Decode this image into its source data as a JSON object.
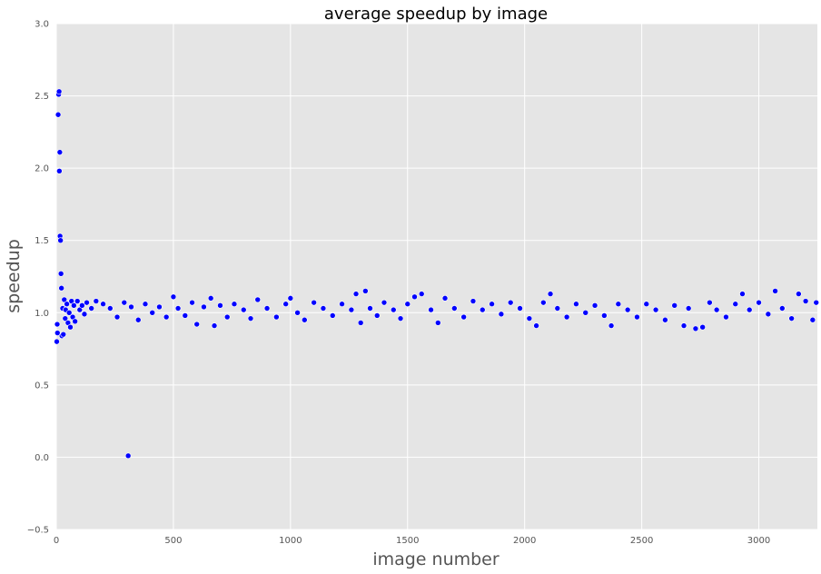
{
  "chart_data": {
    "type": "scatter",
    "title": "average speedup by image",
    "xlabel": "image number",
    "ylabel": "speedup",
    "xlim": [
      0,
      3250
    ],
    "ylim": [
      -0.5,
      3.0
    ],
    "xticks": [
      "0",
      "500",
      "1000",
      "1500",
      "2000",
      "2500",
      "3000"
    ],
    "xtick_values": [
      0,
      500,
      1000,
      1500,
      2000,
      2500,
      3000
    ],
    "yticks": [
      "−0.5",
      "0.0",
      "0.5",
      "1.0",
      "1.5",
      "2.0",
      "2.5",
      "3.0"
    ],
    "ytick_values": [
      -0.5,
      0.0,
      0.5,
      1.0,
      1.5,
      2.0,
      2.5,
      3.0
    ],
    "grid": true,
    "colors": {
      "background": "#e5e5e5",
      "grid": "#ffffff",
      "marker": "#0000ff",
      "marker_edge": "#ffffff"
    },
    "series": [
      {
        "points": [
          [
            2,
            0.8
          ],
          [
            4,
            0.92
          ],
          [
            5,
            0.86
          ],
          [
            8,
            2.37
          ],
          [
            10,
            2.51
          ],
          [
            12,
            2.53
          ],
          [
            13,
            1.98
          ],
          [
            15,
            2.11
          ],
          [
            16,
            1.53
          ],
          [
            18,
            1.5
          ],
          [
            20,
            1.27
          ],
          [
            22,
            1.17
          ],
          [
            24,
            0.84
          ],
          [
            27,
            1.03
          ],
          [
            30,
            0.85
          ],
          [
            34,
            1.09
          ],
          [
            38,
            0.96
          ],
          [
            40,
            1.02
          ],
          [
            45,
            1.06
          ],
          [
            50,
            0.93
          ],
          [
            55,
            1.0
          ],
          [
            60,
            0.9
          ],
          [
            65,
            1.08
          ],
          [
            70,
            0.97
          ],
          [
            75,
            1.05
          ],
          [
            80,
            0.94
          ],
          [
            90,
            1.08
          ],
          [
            100,
            1.02
          ],
          [
            110,
            1.05
          ],
          [
            120,
            0.99
          ],
          [
            130,
            1.07
          ],
          [
            150,
            1.03
          ],
          [
            170,
            1.08
          ],
          [
            200,
            1.06
          ],
          [
            230,
            1.03
          ],
          [
            260,
            0.97
          ],
          [
            290,
            1.07
          ],
          [
            307,
            0.01
          ],
          [
            320,
            1.04
          ],
          [
            350,
            0.95
          ],
          [
            380,
            1.06
          ],
          [
            410,
            1.0
          ],
          [
            440,
            1.04
          ],
          [
            470,
            0.97
          ],
          [
            500,
            1.11
          ],
          [
            520,
            1.03
          ],
          [
            550,
            0.98
          ],
          [
            580,
            1.07
          ],
          [
            600,
            0.92
          ],
          [
            630,
            1.04
          ],
          [
            660,
            1.1
          ],
          [
            675,
            0.91
          ],
          [
            700,
            1.05
          ],
          [
            730,
            0.97
          ],
          [
            760,
            1.06
          ],
          [
            800,
            1.02
          ],
          [
            830,
            0.96
          ],
          [
            860,
            1.09
          ],
          [
            900,
            1.03
          ],
          [
            940,
            0.97
          ],
          [
            980,
            1.06
          ],
          [
            1000,
            1.1
          ],
          [
            1030,
            1.0
          ],
          [
            1060,
            0.95
          ],
          [
            1100,
            1.07
          ],
          [
            1140,
            1.03
          ],
          [
            1180,
            0.98
          ],
          [
            1220,
            1.06
          ],
          [
            1260,
            1.02
          ],
          [
            1280,
            1.13
          ],
          [
            1300,
            0.93
          ],
          [
            1320,
            1.15
          ],
          [
            1340,
            1.03
          ],
          [
            1370,
            0.98
          ],
          [
            1400,
            1.07
          ],
          [
            1440,
            1.02
          ],
          [
            1470,
            0.96
          ],
          [
            1500,
            1.06
          ],
          [
            1530,
            1.11
          ],
          [
            1560,
            1.13
          ],
          [
            1600,
            1.02
          ],
          [
            1630,
            0.93
          ],
          [
            1660,
            1.1
          ],
          [
            1700,
            1.03
          ],
          [
            1740,
            0.97
          ],
          [
            1780,
            1.08
          ],
          [
            1820,
            1.02
          ],
          [
            1860,
            1.06
          ],
          [
            1900,
            0.99
          ],
          [
            1940,
            1.07
          ],
          [
            1980,
            1.03
          ],
          [
            2020,
            0.96
          ],
          [
            2050,
            0.91
          ],
          [
            2080,
            1.07
          ],
          [
            2110,
            1.13
          ],
          [
            2140,
            1.03
          ],
          [
            2180,
            0.97
          ],
          [
            2220,
            1.06
          ],
          [
            2260,
            1.0
          ],
          [
            2300,
            1.05
          ],
          [
            2340,
            0.98
          ],
          [
            2370,
            0.91
          ],
          [
            2400,
            1.06
          ],
          [
            2440,
            1.02
          ],
          [
            2480,
            0.97
          ],
          [
            2520,
            1.06
          ],
          [
            2560,
            1.02
          ],
          [
            2600,
            0.95
          ],
          [
            2640,
            1.05
          ],
          [
            2680,
            0.91
          ],
          [
            2700,
            1.03
          ],
          [
            2730,
            0.89
          ],
          [
            2760,
            0.9
          ],
          [
            2790,
            1.07
          ],
          [
            2820,
            1.02
          ],
          [
            2860,
            0.97
          ],
          [
            2900,
            1.06
          ],
          [
            2930,
            1.13
          ],
          [
            2960,
            1.02
          ],
          [
            3000,
            1.07
          ],
          [
            3040,
            0.99
          ],
          [
            3070,
            1.15
          ],
          [
            3100,
            1.03
          ],
          [
            3140,
            0.96
          ],
          [
            3170,
            1.13
          ],
          [
            3200,
            1.08
          ],
          [
            3230,
            0.95
          ],
          [
            3245,
            1.07
          ]
        ]
      }
    ]
  }
}
